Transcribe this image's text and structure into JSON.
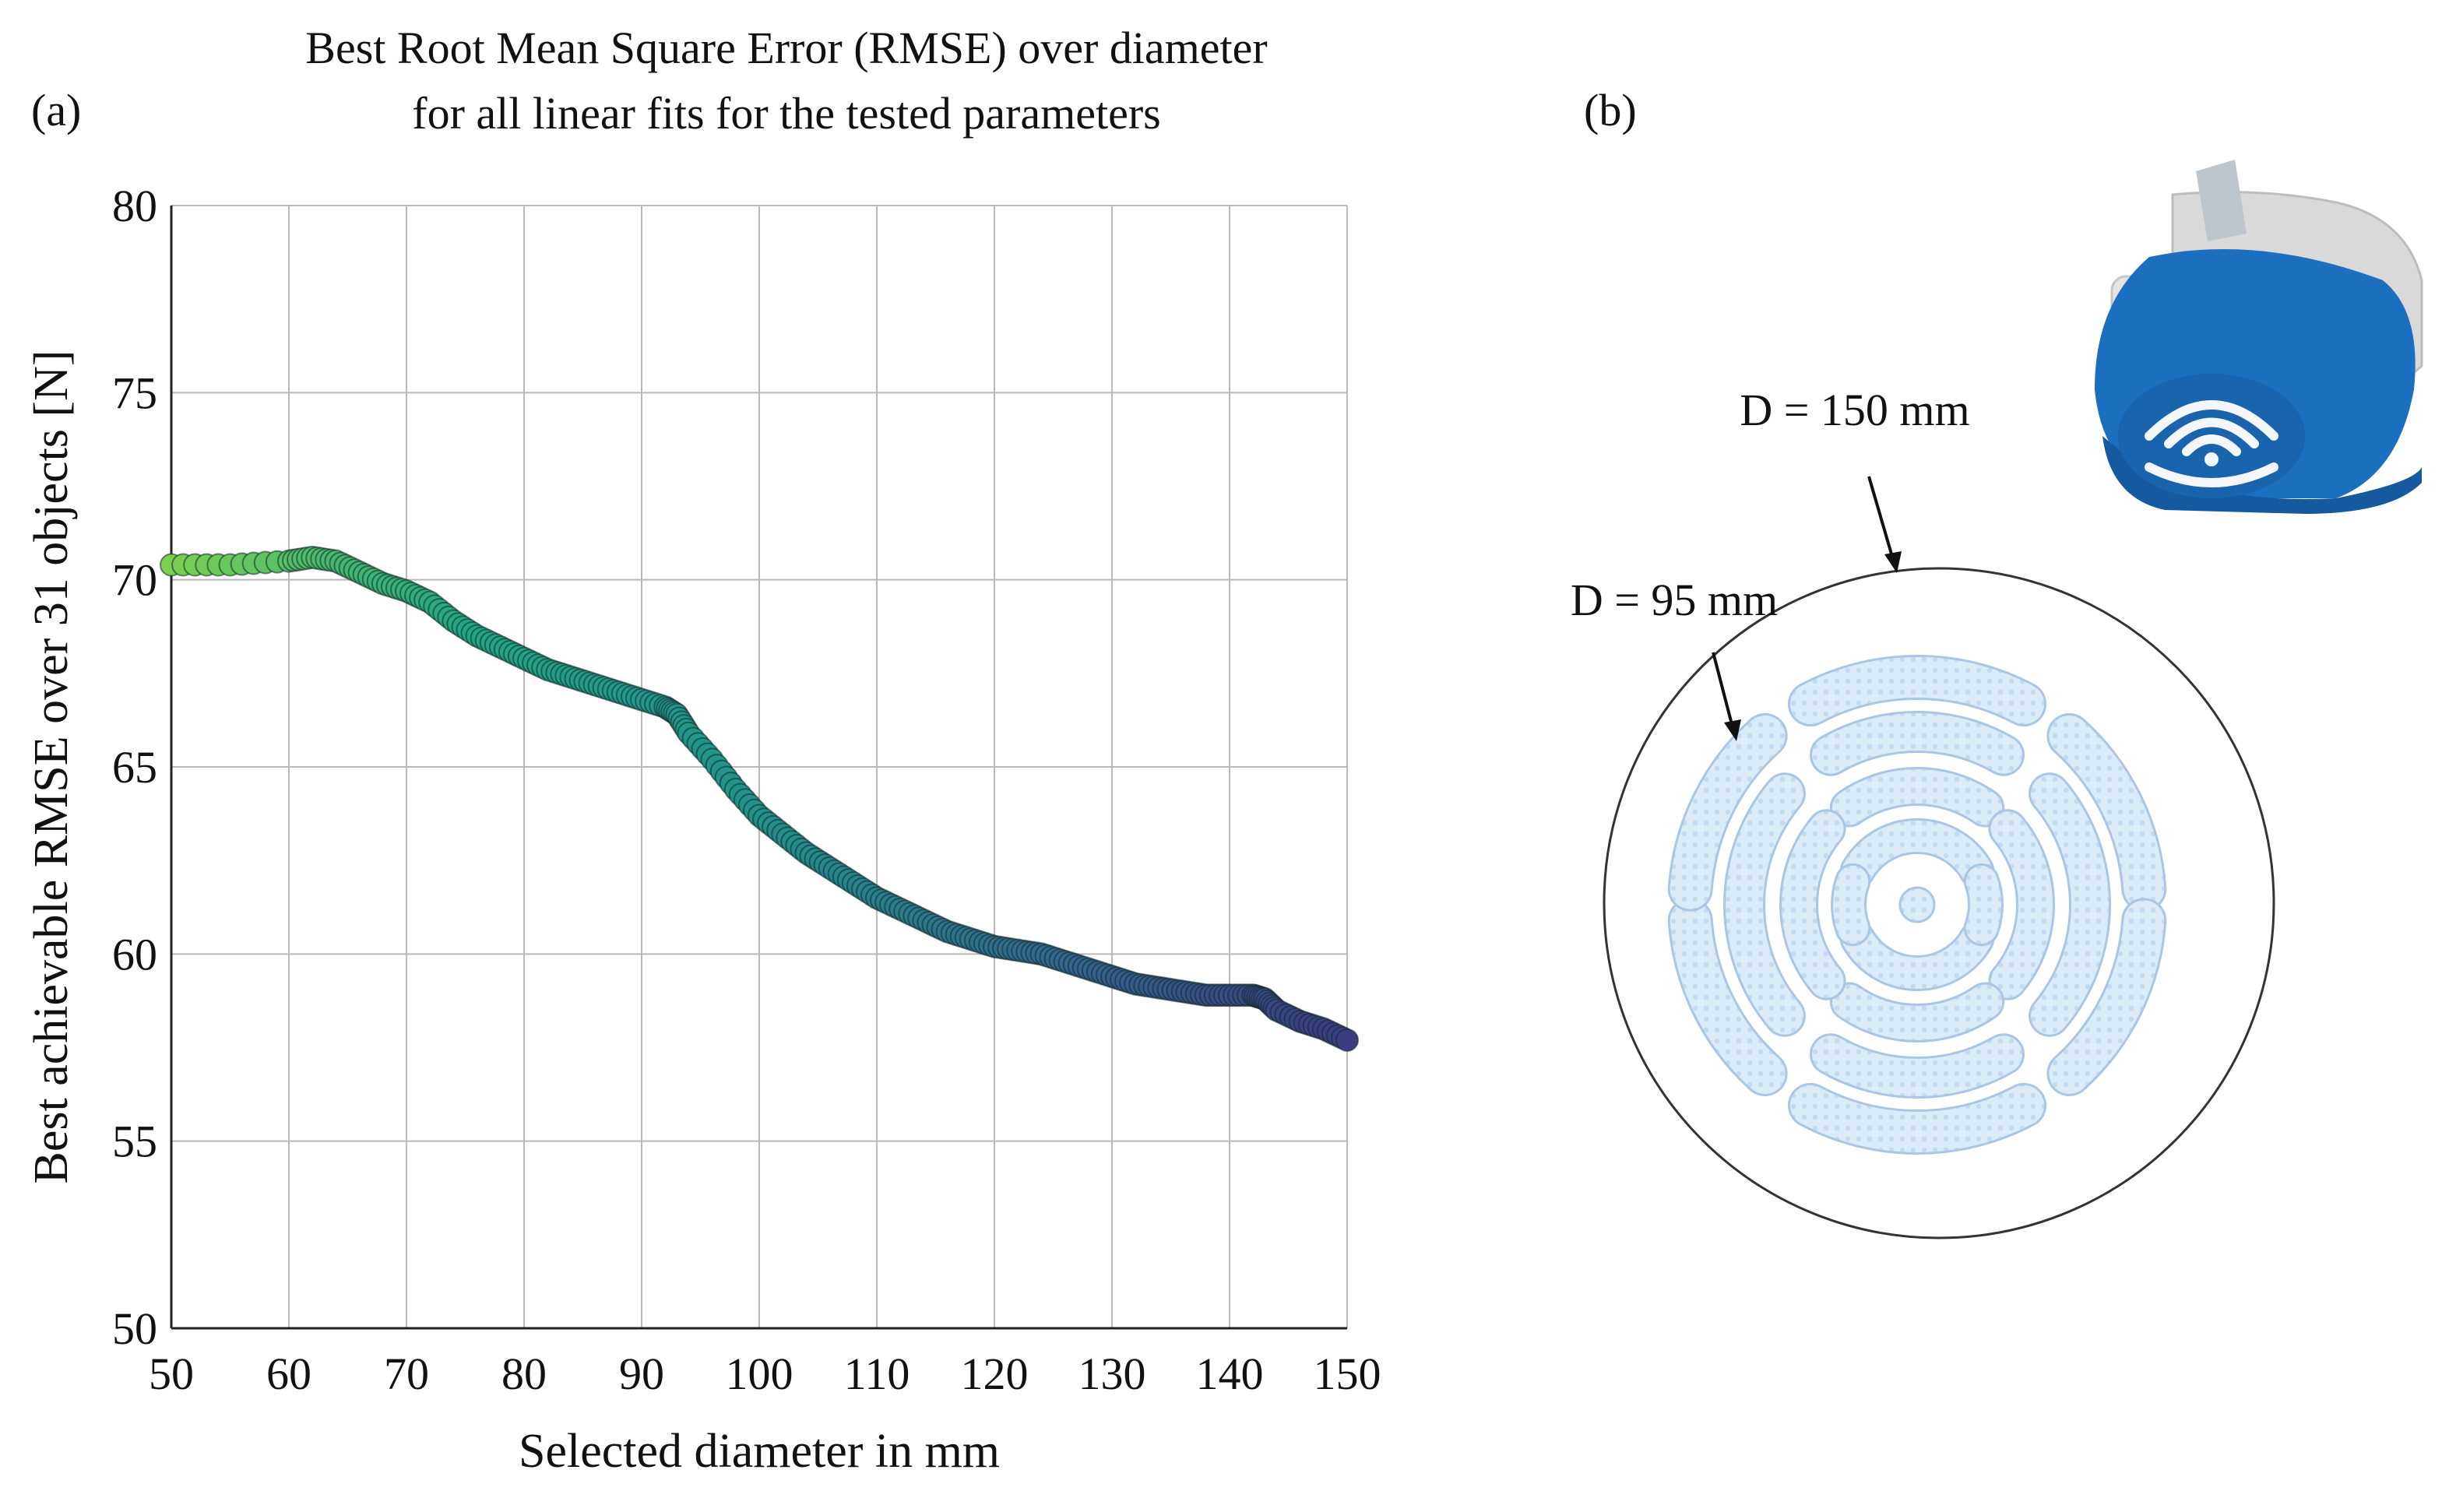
{
  "panel_a_label": "(a)",
  "panel_b_label": "(b)",
  "chart_data": {
    "type": "scatter",
    "title_lines": [
      "Best Root Mean Square Error (RMSE) over diameter",
      "for all linear fits for the tested parameters"
    ],
    "xlabel": "Selected diameter in mm",
    "ylabel": "Best achievable RMSE over 31 objects [N]",
    "xlim": [
      50,
      150
    ],
    "ylim": [
      50,
      80
    ],
    "x_ticks": [
      "50",
      "60",
      "70",
      "80",
      "90",
      "100",
      "110",
      "120",
      "130",
      "140",
      "150"
    ],
    "y_ticks": [
      "50",
      "55",
      "60",
      "65",
      "70",
      "75",
      "80"
    ],
    "grid": true,
    "colormap": "viridis (green to dark blue)",
    "series": [
      {
        "name": "best RMSE",
        "x": [
          50,
          55,
          60,
          62,
          64,
          66,
          68,
          70,
          72,
          74,
          76,
          78,
          80,
          82,
          84,
          86,
          88,
          90,
          92,
          93,
          94,
          96,
          98,
          100,
          102,
          104,
          106,
          108,
          110,
          112,
          114,
          116,
          118,
          120,
          122,
          124,
          126,
          128,
          130,
          132,
          134,
          136,
          138,
          140,
          142,
          143,
          144,
          146,
          148,
          150
        ],
        "y": [
          70.4,
          70.4,
          70.5,
          70.6,
          70.5,
          70.2,
          69.9,
          69.7,
          69.4,
          68.9,
          68.5,
          68.2,
          67.9,
          67.6,
          67.4,
          67.2,
          67.0,
          66.8,
          66.6,
          66.4,
          65.9,
          65.2,
          64.4,
          63.7,
          63.2,
          62.7,
          62.3,
          61.9,
          61.5,
          61.2,
          60.9,
          60.6,
          60.4,
          60.2,
          60.1,
          60.0,
          59.8,
          59.6,
          59.4,
          59.2,
          59.1,
          59.0,
          58.9,
          58.9,
          58.9,
          58.8,
          58.5,
          58.2,
          58.0,
          57.7
        ]
      }
    ]
  },
  "diagram": {
    "outer_label": "D = 150 mm",
    "inner_label": "D = 95 mm",
    "outer_diameter_mm": 150,
    "inner_diameter_mm": 95,
    "photo_description": "blue gripper housing",
    "colors": {
      "slot_fill": "#dcebf8",
      "slot_stroke": "#a9c6e4",
      "gripper_blue": "#1c6fbf",
      "gripper_grey": "#d7d7d7"
    }
  }
}
